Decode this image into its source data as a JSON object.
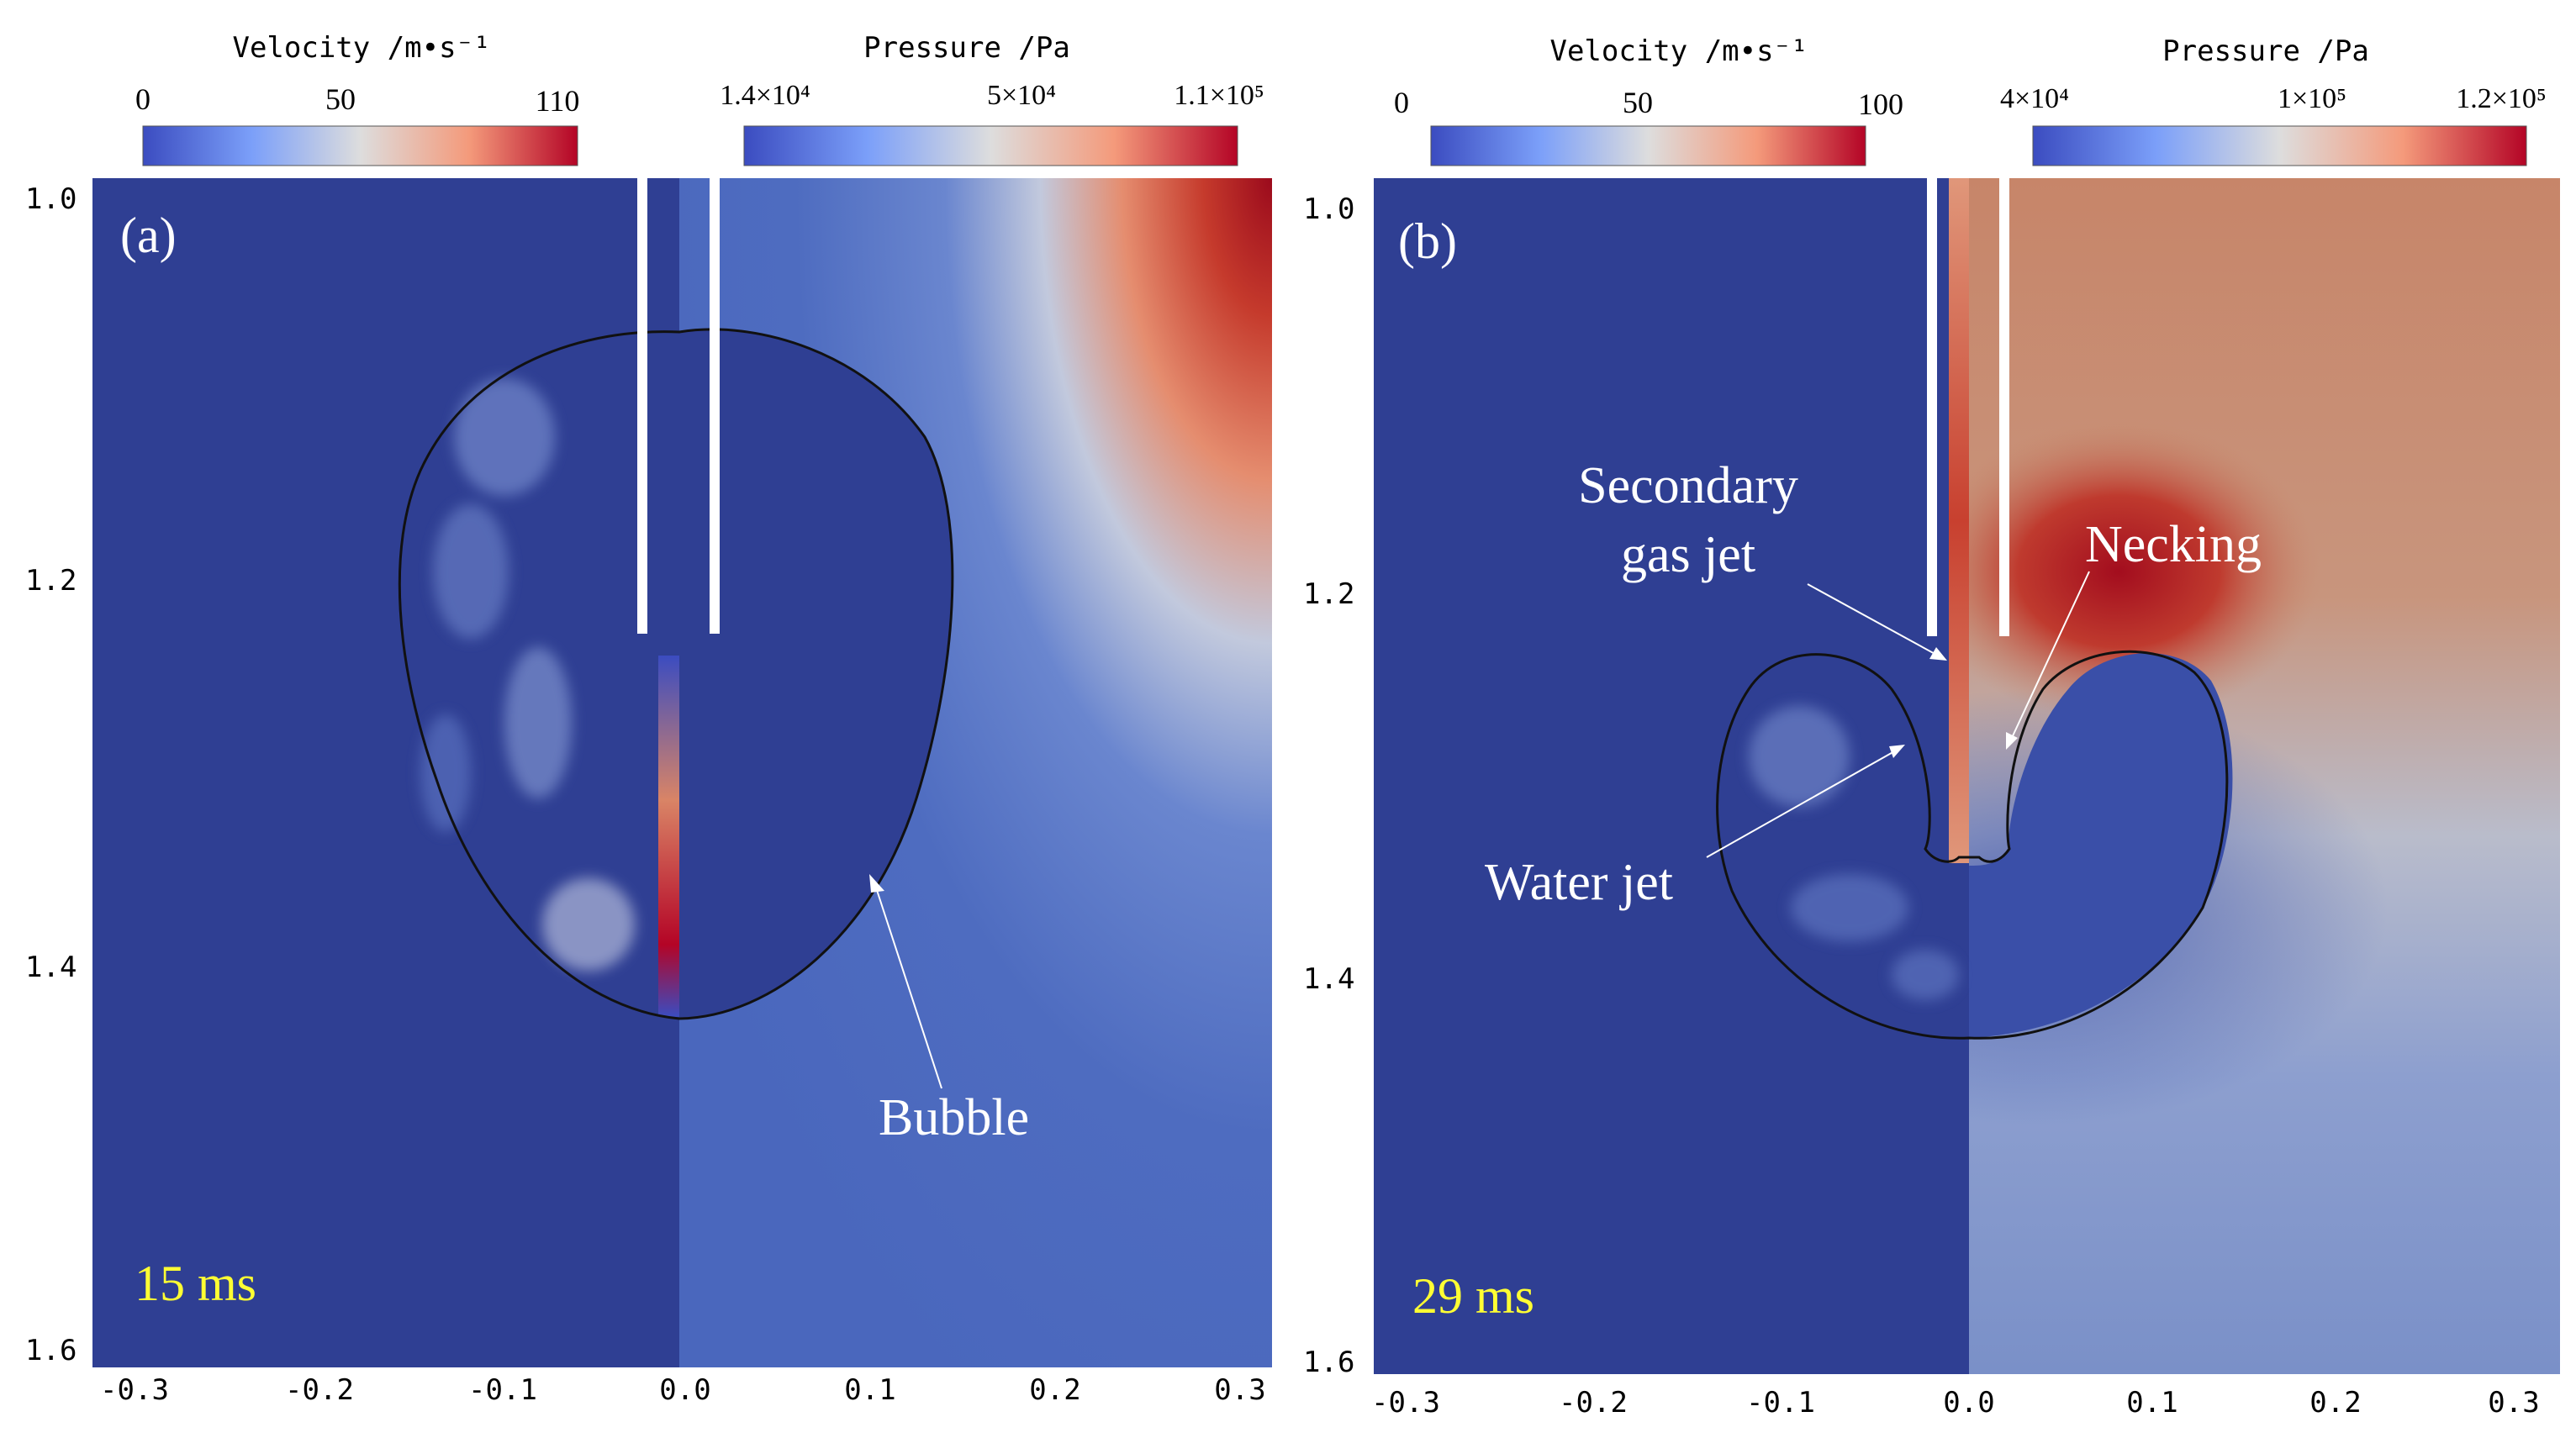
{
  "panels": [
    {
      "id": "a",
      "label": "(a)",
      "time": "15 ms",
      "velocity_bar": {
        "title": "Velocity /m•s⁻¹",
        "ticks": [
          "0",
          "50",
          "110"
        ],
        "min": 0,
        "max": 110
      },
      "pressure_bar": {
        "title": "Pressure /Pa",
        "ticks": [
          "1.4×10⁴",
          "5×10⁴",
          "1.1×10⁵"
        ],
        "min": 14000,
        "max": 110000
      },
      "x_ticks": [
        "-0.3",
        "-0.2",
        "-0.1",
        "0.0",
        "0.1",
        "0.2",
        "0.3"
      ],
      "y_ticks": [
        "1.0",
        "1.2",
        "1.4",
        "1.6"
      ],
      "annotations": [
        {
          "text": "Bubble"
        }
      ]
    },
    {
      "id": "b",
      "label": "(b)",
      "time": "29 ms",
      "velocity_bar": {
        "title": "Velocity /m•s⁻¹",
        "ticks": [
          "0",
          "50",
          "100"
        ],
        "min": 0,
        "max": 100
      },
      "pressure_bar": {
        "title": "Pressure /Pa",
        "ticks": [
          "4×10⁴",
          "1×10⁵",
          "1.2×10⁵"
        ],
        "min": 40000,
        "max": 120000
      },
      "x_ticks": [
        "-0.3",
        "-0.2",
        "-0.1",
        "0.0",
        "0.1",
        "0.2",
        "0.3"
      ],
      "y_ticks": [
        "1.0",
        "1.2",
        "1.4",
        "1.6"
      ],
      "annotations": [
        {
          "text": "Secondary"
        },
        {
          "text": "gas jet"
        },
        {
          "text": "Necking"
        },
        {
          "text": "Water jet"
        }
      ]
    }
  ],
  "colors": {
    "cmap_low": "#3b4cc0",
    "cmap_mid": "#dddddd",
    "cmap_high": "#b40426",
    "field_blue": "#2f3f93",
    "time_label": "#ffff33"
  }
}
